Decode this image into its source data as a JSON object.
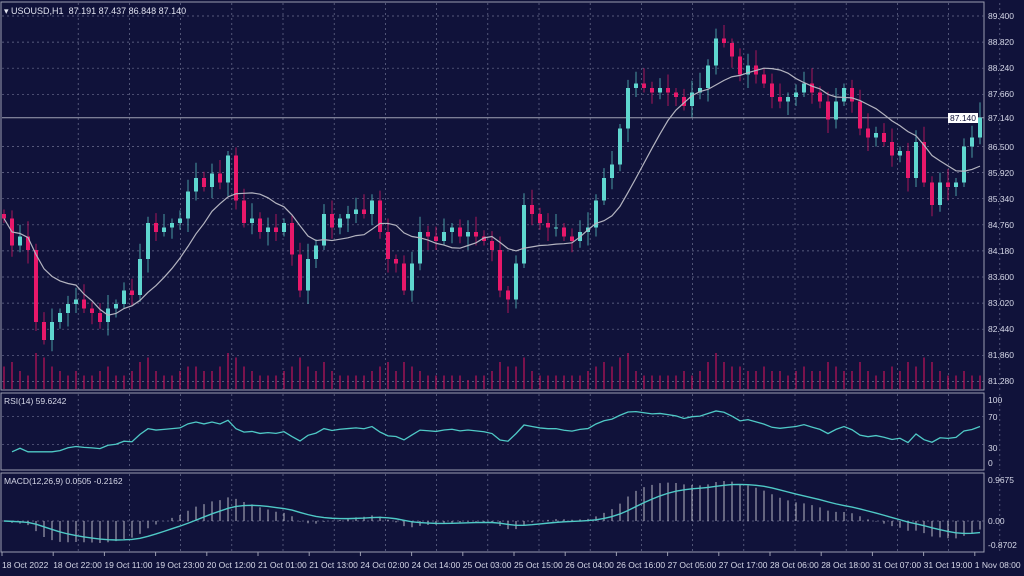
{
  "header": {
    "symbol": "USOUSD,H1",
    "ohlc": "87.191 87.437 86.848 87.140"
  },
  "colors": {
    "background": "#10123a",
    "bull": "#5fd6cf",
    "bear": "#e8186a",
    "grid": "#6d7090",
    "ma": "#b4b4c0",
    "indicator": "#4fc9c6",
    "volume": "#c0145a"
  },
  "chart_data": [
    {
      "type": "candlestick",
      "ylim": [
        81.0,
        89.7
      ],
      "y_ticks": [
        "89.400",
        "88.820",
        "88.240",
        "87.660",
        "87.140",
        "86.500",
        "85.920",
        "85.340",
        "84.760",
        "84.180",
        "83.600",
        "83.020",
        "82.440",
        "81.860",
        "81.280"
      ],
      "current_price": "87.140",
      "x_ticks": [
        "18 Oct 2022",
        "18 Oct 22:00",
        "19 Oct 11:00",
        "19 Oct 23:00",
        "20 Oct 12:00",
        "21 Oct 01:00",
        "21 Oct 13:00",
        "24 Oct 02:00",
        "24 Oct 14:00",
        "25 Oct 03:00",
        "25 Oct 15:00",
        "26 Oct 04:00",
        "26 Oct 16:00",
        "27 Oct 05:00",
        "27 Oct 17:00",
        "28 Oct 06:00",
        "28 Oct 18:00",
        "31 Oct 07:00",
        "31 Oct 19:00",
        "1 Nov 08:00"
      ],
      "close": [
        84.9,
        84.3,
        84.5,
        84.2,
        82.6,
        82.2,
        82.6,
        82.8,
        83.0,
        83.1,
        82.9,
        82.8,
        82.6,
        82.9,
        83.0,
        83.3,
        83.2,
        84.0,
        84.8,
        84.6,
        84.7,
        84.8,
        84.9,
        85.5,
        85.8,
        85.6,
        85.9,
        85.7,
        86.3,
        85.3,
        84.8,
        84.9,
        84.6,
        84.7,
        84.6,
        84.8,
        84.1,
        83.3,
        84.0,
        84.3,
        85.0,
        84.7,
        84.9,
        85.0,
        85.1,
        85.0,
        85.3,
        84.6,
        84.0,
        83.9,
        83.3,
        83.9,
        84.6,
        84.5,
        84.4,
        84.6,
        84.7,
        84.5,
        84.6,
        84.5,
        84.4,
        84.2,
        83.3,
        83.1,
        83.9,
        85.2,
        85.0,
        84.8,
        84.7,
        84.7,
        84.5,
        84.4,
        84.6,
        84.7,
        85.3,
        85.8,
        86.1,
        86.9,
        87.8,
        87.9,
        87.8,
        87.7,
        87.8,
        87.7,
        87.6,
        87.4,
        87.7,
        87.8,
        88.3,
        88.9,
        88.8,
        88.5,
        88.1,
        88.3,
        88.1,
        87.9,
        87.6,
        87.5,
        87.6,
        87.7,
        87.9,
        87.7,
        87.5,
        87.1,
        87.5,
        87.8,
        87.5,
        86.9,
        86.7,
        86.8,
        86.6,
        86.3,
        86.4,
        85.8,
        86.6,
        85.7,
        85.2,
        85.7,
        85.6,
        85.7,
        86.5,
        86.7,
        87.14
      ],
      "volume": [
        5,
        6,
        4,
        3,
        8,
        7,
        5,
        4,
        3,
        4,
        3,
        3,
        4,
        5,
        3,
        3,
        4,
        6,
        7,
        4,
        3,
        3,
        4,
        5,
        5,
        4,
        4,
        5,
        8,
        7,
        5,
        4,
        3,
        3,
        3,
        4,
        5,
        7,
        5,
        4,
        6,
        4,
        3,
        3,
        3,
        3,
        4,
        5,
        6,
        4,
        6,
        5,
        4,
        3,
        3,
        3,
        3,
        3,
        2,
        3,
        3,
        4,
        6,
        5,
        5,
        7,
        4,
        3,
        3,
        3,
        3,
        3,
        3,
        4,
        5,
        6,
        5,
        7,
        8,
        4,
        3,
        3,
        3,
        3,
        3,
        4,
        3,
        4,
        6,
        8,
        6,
        5,
        5,
        4,
        4,
        5,
        4,
        4,
        3,
        4,
        5,
        4,
        4,
        6,
        5,
        4,
        4,
        6,
        4,
        3,
        4,
        5,
        4,
        6,
        5,
        7,
        6,
        4,
        3,
        3,
        4,
        3,
        3
      ]
    },
    {
      "type": "line",
      "title": "RSI(14) 59.6242",
      "y_ticks": [
        "100",
        "70",
        "30",
        "0"
      ],
      "ylim": [
        0,
        100
      ]
    },
    {
      "type": "bar+line",
      "title": "MACD(12,26,9) 0.0505 -0.2162",
      "y_ticks": [
        "0.9675",
        "0.00",
        "-0.8702"
      ],
      "ylim": [
        -0.8702,
        0.9675
      ]
    }
  ]
}
